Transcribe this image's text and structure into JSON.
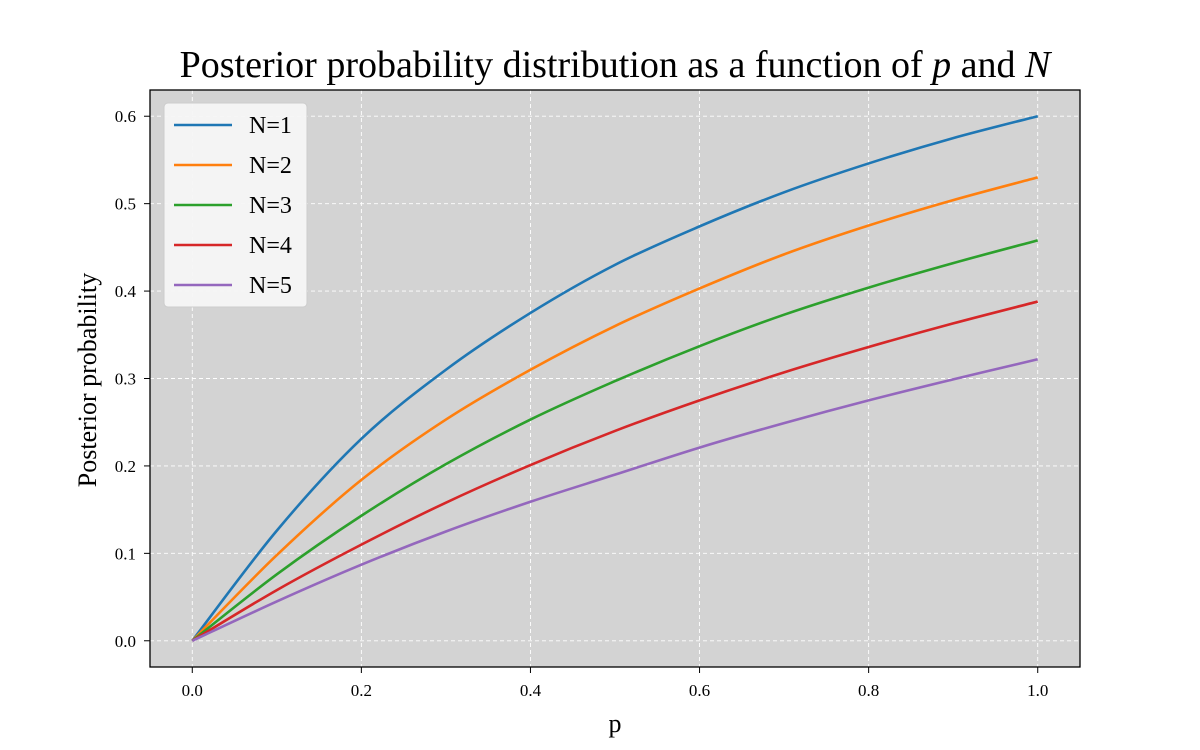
{
  "chart_data": {
    "type": "line",
    "title_text": "Posterior probability distribution as a function of ",
    "title_var_p": "p",
    "title_and": " and ",
    "title_var_n": "N",
    "xlabel": "p",
    "ylabel": "Posterior probability",
    "xlim": [
      -0.05,
      1.05
    ],
    "ylim": [
      -0.03,
      0.63
    ],
    "xticks": [
      0.0,
      0.2,
      0.4,
      0.6,
      0.8,
      1.0
    ],
    "xtick_labels": [
      "0.0",
      "0.2",
      "0.4",
      "0.6",
      "0.8",
      "1.0"
    ],
    "yticks": [
      0.0,
      0.1,
      0.2,
      0.3,
      0.4,
      0.5,
      0.6
    ],
    "ytick_labels": [
      "0.0",
      "0.1",
      "0.2",
      "0.3",
      "0.4",
      "0.5",
      "0.6"
    ],
    "grid": true,
    "legend_position": "top-left",
    "background": "#d3d3d3",
    "x": [
      0.0,
      0.1,
      0.2,
      0.3,
      0.4,
      0.5,
      0.6,
      0.7,
      0.8,
      0.9,
      1.0
    ],
    "series": [
      {
        "name": "N=1",
        "color": "#1f77b4",
        "values": [
          0.0,
          0.126,
          0.231,
          0.31,
          0.375,
          0.43,
          0.474,
          0.513,
          0.546,
          0.575,
          0.6
        ]
      },
      {
        "name": "N=2",
        "color": "#ff7f0e",
        "values": [
          0.0,
          0.098,
          0.184,
          0.253,
          0.31,
          0.36,
          0.403,
          0.442,
          0.475,
          0.504,
          0.53
        ]
      },
      {
        "name": "N=3",
        "color": "#2ca02c",
        "values": [
          0.0,
          0.076,
          0.143,
          0.202,
          0.253,
          0.297,
          0.337,
          0.373,
          0.404,
          0.432,
          0.458
        ]
      },
      {
        "name": "N=4",
        "color": "#d62728",
        "values": [
          0.0,
          0.058,
          0.11,
          0.158,
          0.201,
          0.24,
          0.275,
          0.307,
          0.336,
          0.363,
          0.388
        ]
      },
      {
        "name": "N=5",
        "color": "#9467bd",
        "values": [
          0.0,
          0.045,
          0.087,
          0.125,
          0.159,
          0.19,
          0.221,
          0.249,
          0.275,
          0.299,
          0.322
        ]
      }
    ]
  }
}
